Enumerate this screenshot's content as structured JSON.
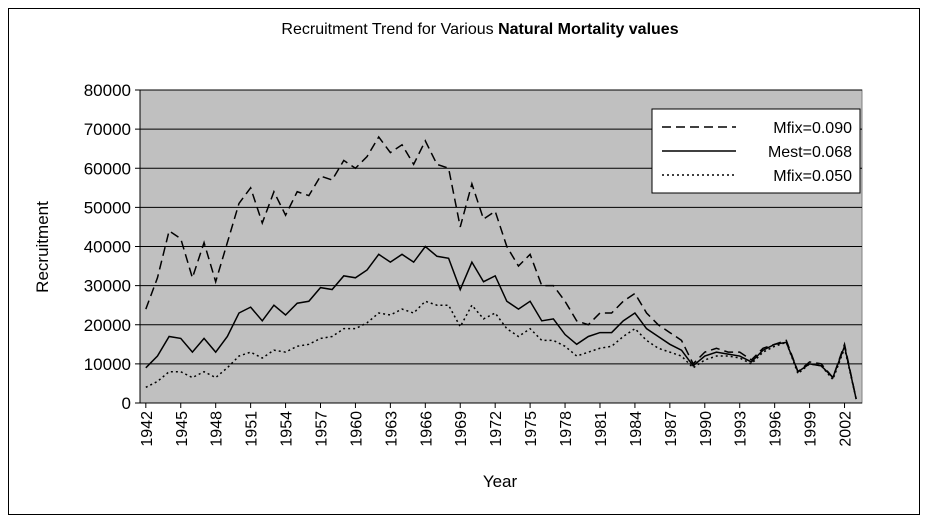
{
  "chart_data": {
    "type": "line",
    "title": "Recruitment Trend for Various",
    "title_emphasis": "Natural Mortality values",
    "x_label": "Year",
    "y_label": "Recruitment",
    "x": [
      1942,
      1943,
      1944,
      1945,
      1946,
      1947,
      1948,
      1949,
      1950,
      1951,
      1952,
      1953,
      1954,
      1955,
      1956,
      1957,
      1958,
      1959,
      1960,
      1961,
      1962,
      1963,
      1964,
      1965,
      1966,
      1967,
      1968,
      1969,
      1970,
      1971,
      1972,
      1973,
      1974,
      1975,
      1976,
      1977,
      1978,
      1979,
      1980,
      1981,
      1982,
      1983,
      1984,
      1985,
      1986,
      1987,
      1988,
      1989,
      1990,
      1991,
      1992,
      1993,
      1994,
      1995,
      1996,
      1997,
      1998,
      1999,
      2000,
      2001,
      2002,
      2003
    ],
    "xlim": [
      1941.5,
      2003.5
    ],
    "xticks": [
      1942,
      1945,
      1948,
      1951,
      1954,
      1957,
      1960,
      1963,
      1966,
      1969,
      1972,
      1975,
      1978,
      1981,
      1984,
      1987,
      1990,
      1993,
      1996,
      1999,
      2002
    ],
    "ylim": [
      0,
      80000
    ],
    "yticks": [
      0,
      10000,
      20000,
      30000,
      40000,
      50000,
      60000,
      70000,
      80000
    ],
    "grid": true,
    "legend": "top-right",
    "background": "#c0c0c0",
    "series": [
      {
        "name": "Mfix=0.090",
        "color": "#000000",
        "dash": "dashed",
        "values": [
          24000,
          32000,
          44000,
          42000,
          32000,
          41000,
          31000,
          41000,
          51000,
          55000,
          46000,
          54000,
          48000,
          54000,
          53000,
          58000,
          57000,
          62000,
          60000,
          63000,
          68000,
          64000,
          66000,
          61000,
          67000,
          61000,
          60000,
          45000,
          56000,
          47000,
          49000,
          40000,
          35000,
          38000,
          30000,
          30000,
          26000,
          21000,
          20000,
          23000,
          23000,
          26000,
          28000,
          23000,
          20000,
          18000,
          16000,
          10000,
          13000,
          14000,
          13000,
          13000,
          11000,
          14000,
          15000,
          16000,
          8000,
          10500,
          10000,
          6500,
          15000,
          1000
        ]
      },
      {
        "name": "Mest=0.068",
        "color": "#000000",
        "dash": "solid",
        "values": [
          9000,
          12000,
          17000,
          16500,
          13000,
          16500,
          13000,
          17000,
          23000,
          24500,
          21000,
          25000,
          22500,
          25500,
          26000,
          29500,
          29000,
          32500,
          32000,
          34000,
          38000,
          36000,
          38000,
          36000,
          40000,
          37500,
          37000,
          29000,
          36000,
          31000,
          32500,
          26000,
          24000,
          26000,
          21000,
          21500,
          17500,
          15000,
          17000,
          18000,
          18000,
          21000,
          23000,
          19000,
          17000,
          15000,
          13500,
          9500,
          12000,
          13000,
          12500,
          12000,
          10500,
          13500,
          15000,
          15500,
          8000,
          10000,
          9500,
          6500,
          14500,
          1000
        ]
      },
      {
        "name": "Mfix=0.050",
        "color": "#000000",
        "dash": "dotted",
        "values": [
          4000,
          5500,
          8000,
          8000,
          6500,
          8000,
          6500,
          9000,
          12000,
          13000,
          11500,
          13500,
          13000,
          14500,
          15000,
          16500,
          17000,
          19000,
          19000,
          20500,
          23000,
          22500,
          24000,
          23000,
          26000,
          25000,
          25000,
          19500,
          25000,
          21500,
          23000,
          19000,
          17000,
          19000,
          16000,
          16000,
          14500,
          12000,
          13000,
          14000,
          14500,
          17000,
          19000,
          16000,
          14000,
          13000,
          12000,
          9000,
          11000,
          12000,
          12000,
          11500,
          10000,
          13000,
          14500,
          15500,
          7500,
          10000,
          9500,
          6000,
          14000,
          1000
        ]
      }
    ]
  }
}
